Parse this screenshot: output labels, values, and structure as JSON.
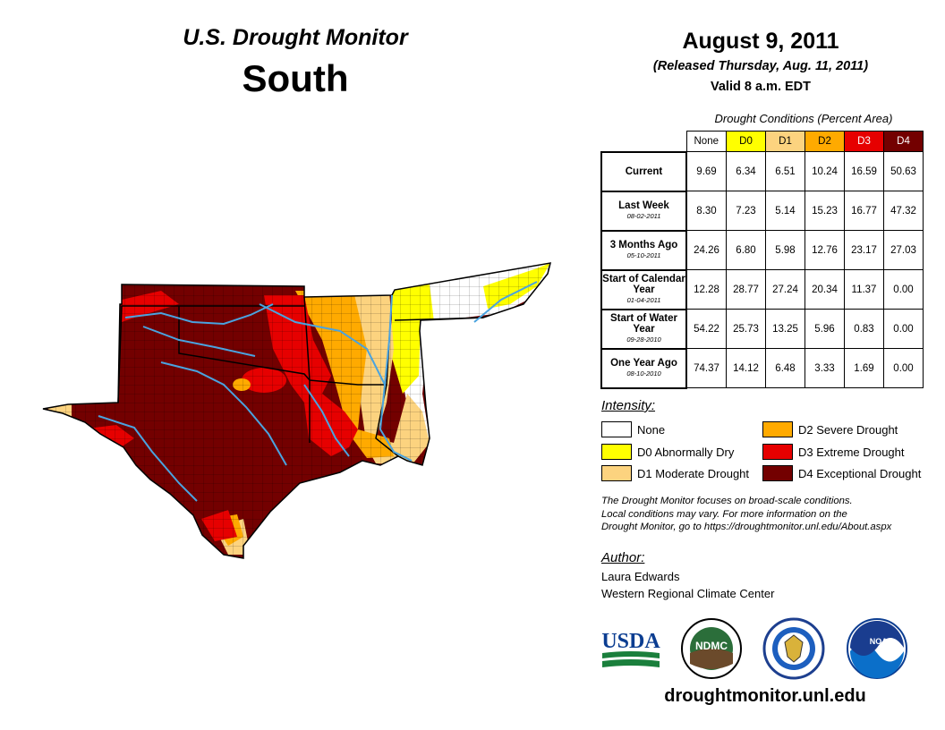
{
  "header": {
    "title": "U.S. Drought Monitor",
    "region": "South",
    "date": "August 9, 2011",
    "released": "(Released Thursday, Aug. 11, 2011)",
    "valid": "Valid 8 a.m. EDT"
  },
  "table": {
    "title": "Drought Conditions (Percent Area)",
    "columns": [
      "None",
      "D0",
      "D1",
      "D2",
      "D3",
      "D4"
    ],
    "column_colors": [
      "#ffffff",
      "#ffff00",
      "#fcd37f",
      "#ffaa00",
      "#e60000",
      "#730000"
    ],
    "rows": [
      {
        "label": "Current",
        "date": "",
        "values": [
          "9.69",
          "6.34",
          "6.51",
          "10.24",
          "16.59",
          "50.63"
        ]
      },
      {
        "label": "Last Week",
        "date": "08-02-2011",
        "values": [
          "8.30",
          "7.23",
          "5.14",
          "15.23",
          "16.77",
          "47.32"
        ]
      },
      {
        "label": "3 Months Ago",
        "date": "05-10-2011",
        "values": [
          "24.26",
          "6.80",
          "5.98",
          "12.76",
          "23.17",
          "27.03"
        ]
      },
      {
        "label": "Start of Calendar Year",
        "date": "01-04-2011",
        "values": [
          "12.28",
          "28.77",
          "27.24",
          "20.34",
          "11.37",
          "0.00"
        ]
      },
      {
        "label": "Start of Water Year",
        "date": "09-28-2010",
        "values": [
          "54.22",
          "25.73",
          "13.25",
          "5.96",
          "0.83",
          "0.00"
        ]
      },
      {
        "label": "One Year Ago",
        "date": "08-10-2010",
        "values": [
          "74.37",
          "14.12",
          "6.48",
          "3.33",
          "1.69",
          "0.00"
        ]
      }
    ]
  },
  "legend": {
    "title": "Intensity:",
    "items": [
      {
        "label": "None",
        "color": "#ffffff"
      },
      {
        "label": "D0 Abnormally Dry",
        "color": "#ffff00"
      },
      {
        "label": "D1 Moderate Drought",
        "color": "#fcd37f"
      },
      {
        "label": "D2 Severe Drought",
        "color": "#ffaa00"
      },
      {
        "label": "D3 Extreme Drought",
        "color": "#e60000"
      },
      {
        "label": "D4 Exceptional Drought",
        "color": "#730000"
      }
    ]
  },
  "note": {
    "line1": "The Drought Monitor focuses on broad-scale conditions.",
    "line2": "Local conditions may vary. For more information on the",
    "line3": "Drought Monitor, go to https://droughtmonitor.unl.edu/About.aspx"
  },
  "author": {
    "title": "Author:",
    "name": "Laura Edwards",
    "org": "Western Regional Climate Center"
  },
  "logos": {
    "usda": "USDA",
    "ndmc": "NDMC",
    "noaa": "NOAA"
  },
  "website": "droughtmonitor.unl.edu",
  "colors": {
    "river": "#4aa3df",
    "county_line": "#000000"
  }
}
